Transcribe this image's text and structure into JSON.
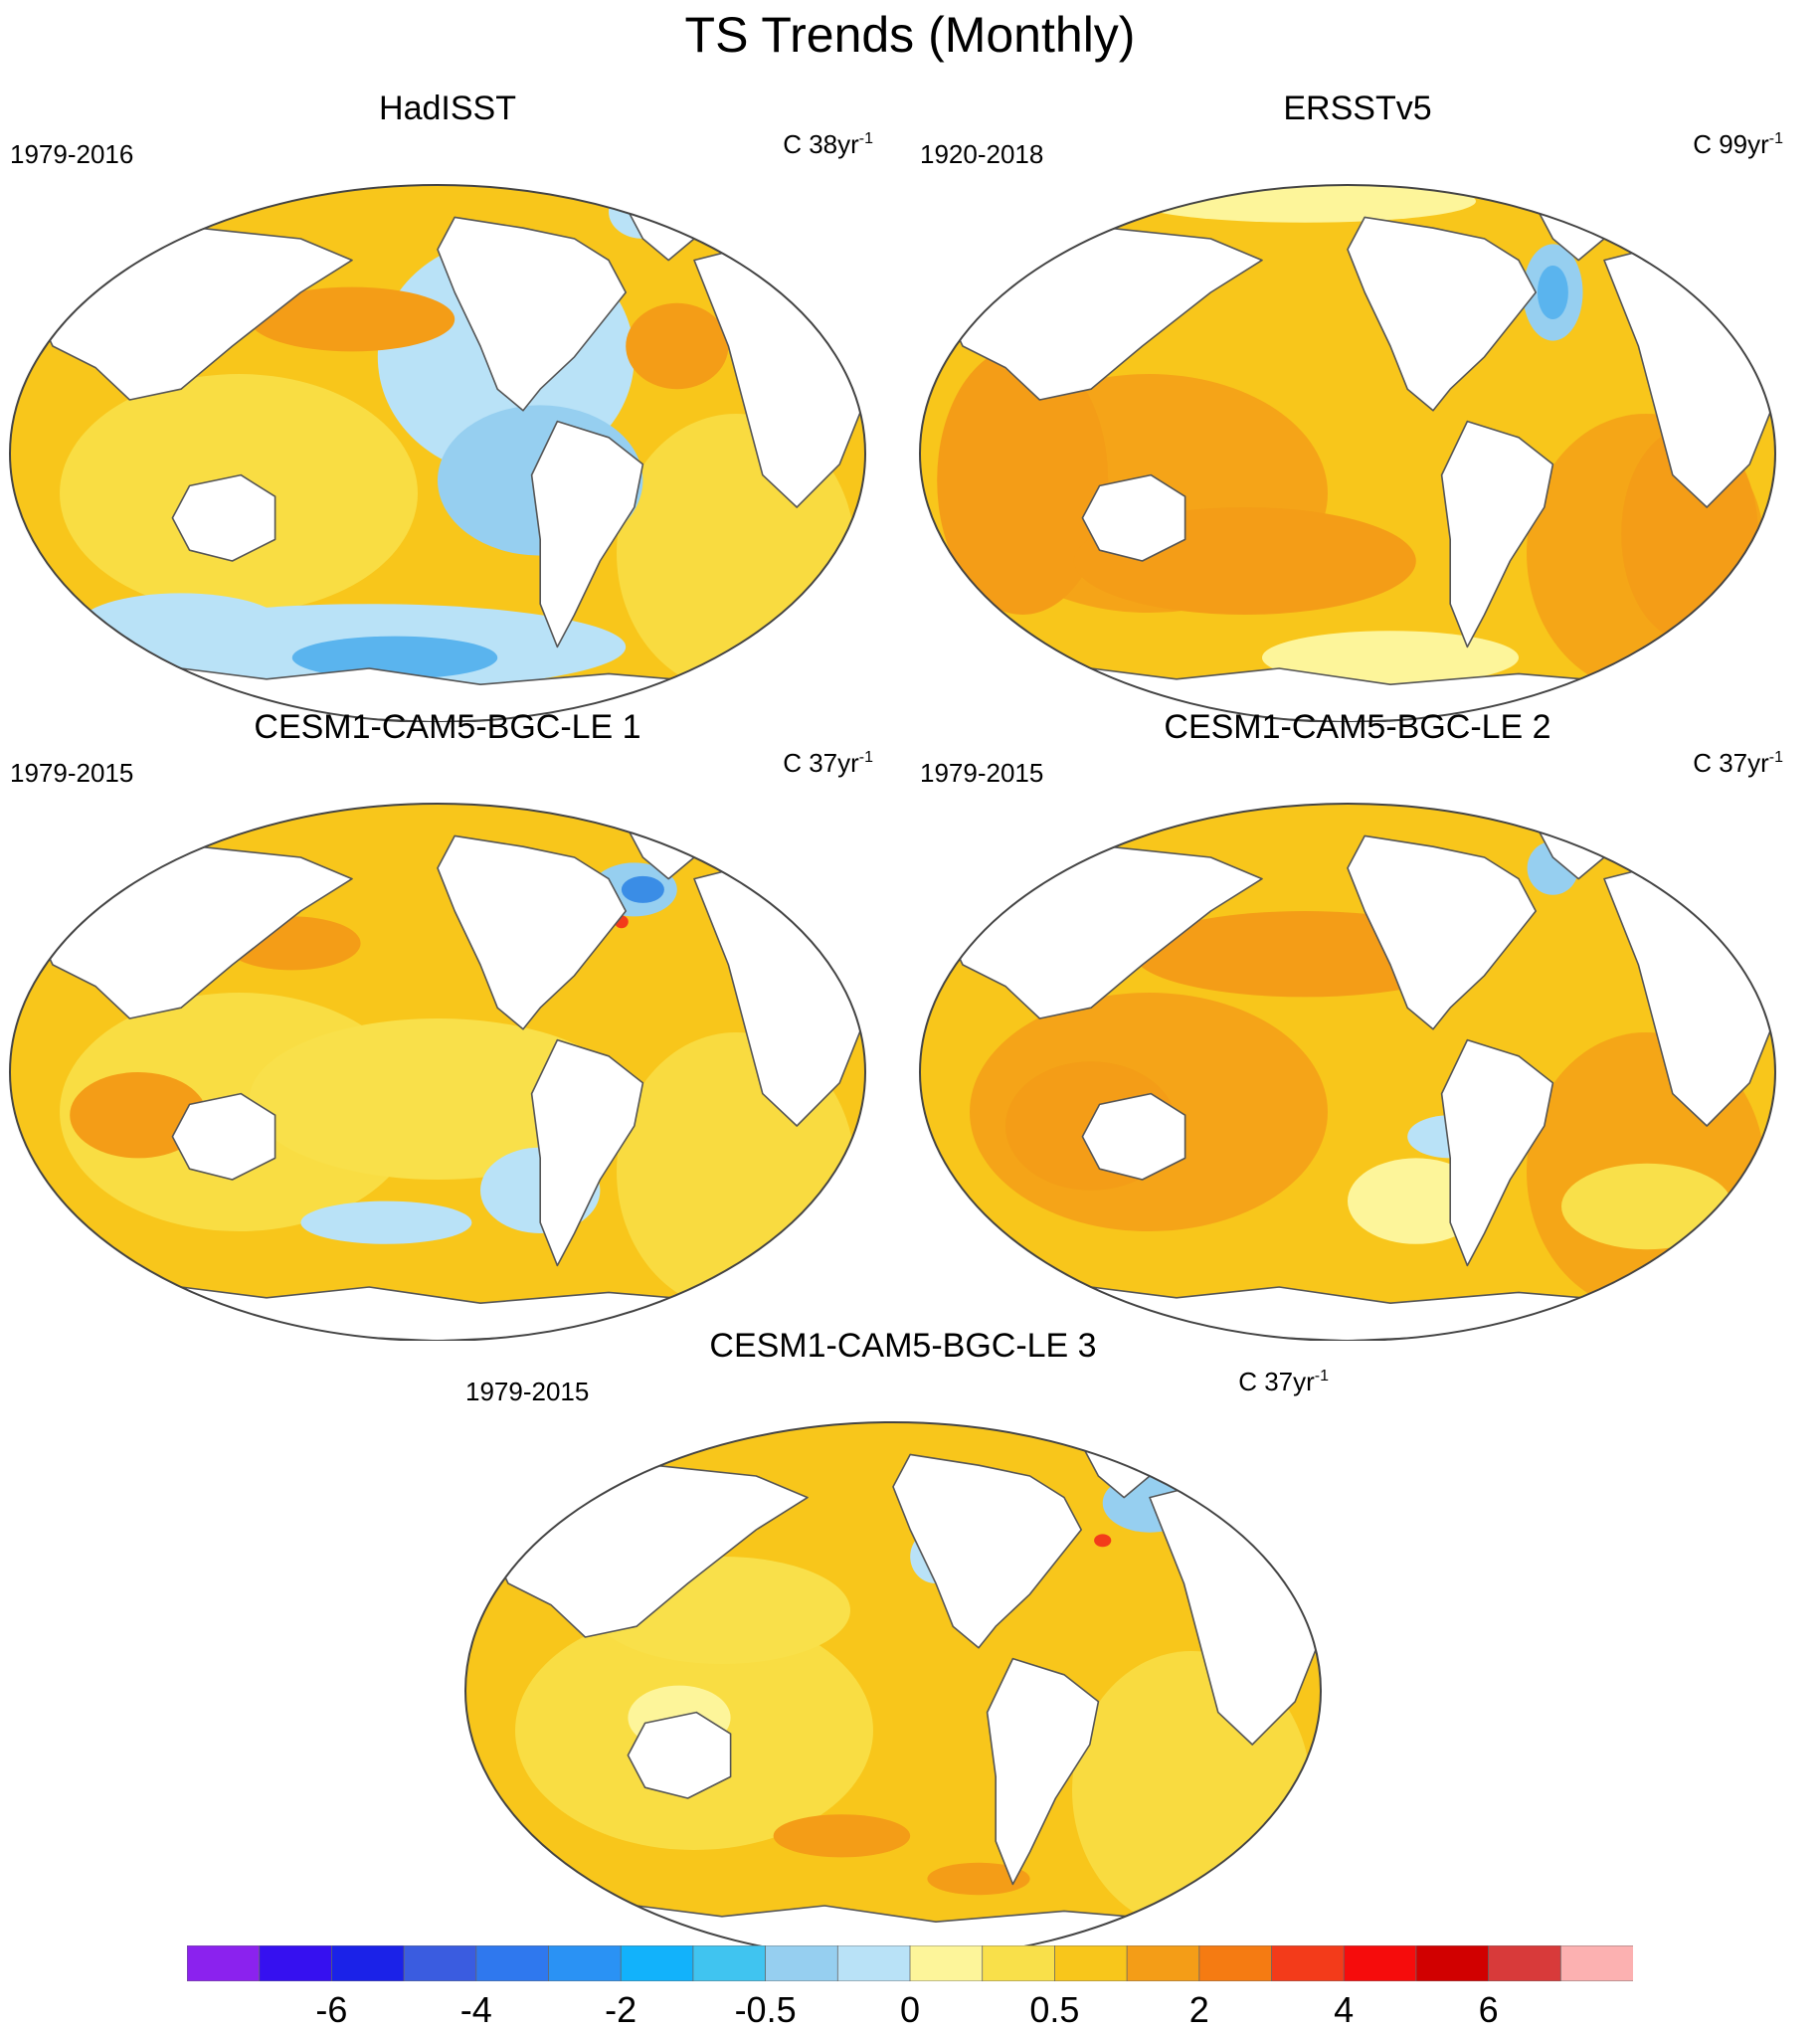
{
  "title": "TS Trends (Monthly)",
  "panels": [
    {
      "name": "HadISST",
      "period": "1979-2016",
      "units_base": "C 38yr",
      "units_exp": "-1",
      "ocean": "#f8c61b",
      "shade": "#f9e04a",
      "blobs": [
        {
          "c": "#b9e2f7",
          "p": [
            0.58,
            0.32,
            0.15,
            0.22
          ]
        },
        {
          "c": "#96cff0",
          "p": [
            0.62,
            0.55,
            0.12,
            0.14
          ]
        },
        {
          "c": "#b9e2f7",
          "p": [
            0.42,
            0.86,
            0.3,
            0.08
          ]
        },
        {
          "c": "#5ab4ee",
          "p": [
            0.45,
            0.88,
            0.12,
            0.04
          ]
        },
        {
          "c": "#b9e2f7",
          "p": [
            0.2,
            0.82,
            0.12,
            0.06
          ]
        },
        {
          "c": "#f49d17",
          "p": [
            0.4,
            0.25,
            0.12,
            0.06
          ]
        },
        {
          "c": "#f49d17",
          "p": [
            0.78,
            0.3,
            0.06,
            0.08
          ]
        },
        {
          "c": "#b9e2f7",
          "p": [
            0.74,
            0.05,
            0.04,
            0.05
          ]
        }
      ]
    },
    {
      "name": "ERSSTv5",
      "period": "1920-2018",
      "units_base": "C 99yr",
      "units_exp": "-1",
      "ocean": "#f8c61b",
      "shade": "#f49d17",
      "blobs": [
        {
          "c": "#f49d17",
          "p": [
            0.12,
            0.55,
            0.1,
            0.25
          ]
        },
        {
          "c": "#f49d17",
          "p": [
            0.9,
            0.65,
            0.08,
            0.2
          ]
        },
        {
          "c": "#f49d17",
          "p": [
            0.38,
            0.7,
            0.2,
            0.1
          ]
        },
        {
          "c": "#96cff0",
          "p": [
            0.74,
            0.2,
            0.035,
            0.09
          ]
        },
        {
          "c": "#5ab4ee",
          "p": [
            0.74,
            0.2,
            0.018,
            0.05
          ]
        },
        {
          "c": "#fdf59a",
          "p": [
            0.55,
            0.88,
            0.15,
            0.05
          ]
        },
        {
          "c": "#fdf59a",
          "p": [
            0.45,
            0.03,
            0.2,
            0.04
          ]
        }
      ]
    },
    {
      "name": "CESM1-CAM5-BGC-LE 1",
      "period": "1979-2015",
      "units_base": "C 37yr",
      "units_exp": "-1",
      "ocean": "#f8c61b",
      "shade": "#f9e04a",
      "blobs": [
        {
          "c": "#f9e04a",
          "p": [
            0.5,
            0.55,
            0.22,
            0.15
          ]
        },
        {
          "c": "#b9e2f7",
          "p": [
            0.62,
            0.72,
            0.07,
            0.08
          ]
        },
        {
          "c": "#b9e2f7",
          "p": [
            0.44,
            0.78,
            0.1,
            0.04
          ]
        },
        {
          "c": "#96cff0",
          "p": [
            0.73,
            0.16,
            0.05,
            0.05
          ]
        },
        {
          "c": "#3a8de6",
          "p": [
            0.74,
            0.16,
            0.025,
            0.025
          ]
        },
        {
          "c": "#f33b1a",
          "p": [
            0.715,
            0.22,
            0.008,
            0.012
          ]
        },
        {
          "c": "#f49d17",
          "p": [
            0.33,
            0.26,
            0.08,
            0.05
          ]
        },
        {
          "c": "#f49d17",
          "p": [
            0.15,
            0.58,
            0.08,
            0.08
          ]
        }
      ]
    },
    {
      "name": "CESM1-CAM5-BGC-LE 2",
      "period": "1979-2015",
      "units_base": "C 37yr",
      "units_exp": "-1",
      "ocean": "#f8c61b",
      "shade": "#f49d17",
      "blobs": [
        {
          "c": "#f49d17",
          "p": [
            0.45,
            0.28,
            0.2,
            0.08
          ]
        },
        {
          "c": "#f49d17",
          "p": [
            0.2,
            0.6,
            0.1,
            0.12
          ]
        },
        {
          "c": "#b9e2f7",
          "p": [
            0.62,
            0.62,
            0.05,
            0.04
          ]
        },
        {
          "c": "#fdf59a",
          "p": [
            0.58,
            0.74,
            0.08,
            0.08
          ]
        },
        {
          "c": "#96cff0",
          "p": [
            0.74,
            0.12,
            0.03,
            0.05
          ]
        },
        {
          "c": "#f9e04a",
          "p": [
            0.85,
            0.75,
            0.1,
            0.08
          ]
        }
      ]
    },
    {
      "name": "CESM1-CAM5-BGC-LE 3",
      "period": "1979-2015",
      "units_base": "C 37yr",
      "units_exp": "-1",
      "ocean": "#f8c61b",
      "shade": "#f9e04a",
      "blobs": [
        {
          "c": "#f9e04a",
          "p": [
            0.3,
            0.35,
            0.15,
            0.1
          ]
        },
        {
          "c": "#b9e2f7",
          "p": [
            0.55,
            0.25,
            0.03,
            0.05
          ]
        },
        {
          "c": "#fdf59a",
          "p": [
            0.25,
            0.55,
            0.06,
            0.06
          ]
        },
        {
          "c": "#3a8de6",
          "p": [
            0.8,
            0.15,
            0.035,
            0.035
          ]
        },
        {
          "c": "#96cff0",
          "p": [
            0.8,
            0.15,
            0.055,
            0.055
          ]
        },
        {
          "c": "#f33b1a",
          "p": [
            0.745,
            0.22,
            0.01,
            0.012
          ]
        },
        {
          "c": "#f49d17",
          "p": [
            0.44,
            0.77,
            0.08,
            0.04
          ]
        },
        {
          "c": "#f49d17",
          "p": [
            0.6,
            0.85,
            0.06,
            0.03
          ]
        }
      ]
    }
  ],
  "colorbar": {
    "colors": [
      "#8b22ee",
      "#3610f0",
      "#1b22e8",
      "#3a5ce0",
      "#2f78ee",
      "#2a92f4",
      "#12b2fb",
      "#40c4f0",
      "#96cff0",
      "#b9e2f7",
      "#fdf59a",
      "#f9e04a",
      "#f8c61b",
      "#f49d17",
      "#f57b12",
      "#f33b1a",
      "#f60c0c",
      "#d10000",
      "#d83a3a",
      "#fcb1b1"
    ],
    "tick_labels": [
      "-6",
      "-4",
      "-2",
      "-0.5",
      "0",
      "0.5",
      "2",
      "4",
      "6"
    ],
    "tick_boundaries": [
      2,
      4,
      6,
      8,
      10,
      12,
      14,
      16,
      18
    ]
  }
}
